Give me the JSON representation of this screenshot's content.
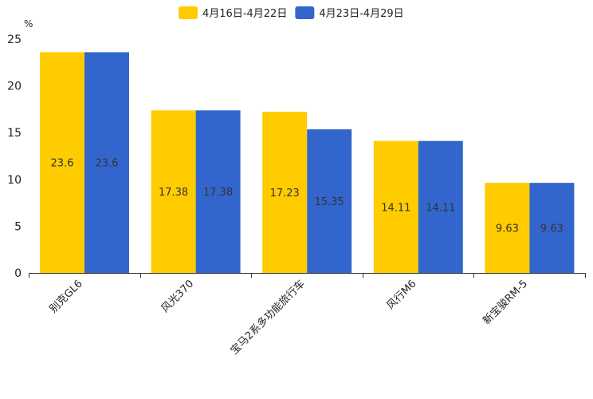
{
  "chart_data": {
    "type": "bar",
    "title": "",
    "ylabel": "%",
    "xlabel": "",
    "ylim": [
      0,
      25
    ],
    "yticks": [
      0,
      5,
      10,
      15,
      20,
      25
    ],
    "grid": false,
    "legend_position": "top-center",
    "categories": [
      "别克GL6",
      "风光370",
      "宝马2系多功能旅行车",
      "风行M6",
      "新宝骏RM-5"
    ],
    "series": [
      {
        "name": "4月16日-4月22日",
        "color": "#FFCC00",
        "values": [
          23.6,
          17.38,
          17.23,
          14.11,
          9.63
        ]
      },
      {
        "name": "4月23日-4月29日",
        "color": "#3366CC",
        "values": [
          23.6,
          17.38,
          15.35,
          14.11,
          9.63
        ]
      }
    ]
  }
}
